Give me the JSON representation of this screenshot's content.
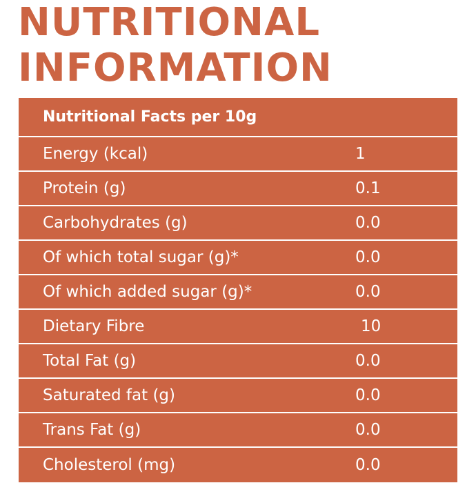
{
  "title": {
    "line1": "NUTRITIONAL",
    "line2": "INFORMATION"
  },
  "table": {
    "header": "Nutritional Facts per 10g",
    "rows": [
      {
        "label": "Energy (kcal)",
        "value": "1"
      },
      {
        "label": "Protein (g)",
        "value": "0.1"
      },
      {
        "label": "Carbohydrates (g)",
        "value": "0.0"
      },
      {
        "label": "Of which total sugar (g)*",
        "value": "0.0"
      },
      {
        "label": "Of which added sugar (g)*",
        "value": "0.0"
      },
      {
        "label": "Dietary Fibre",
        "value": "10"
      },
      {
        "label": "Total Fat (g)",
        "value": "0.0"
      },
      {
        "label": "Saturated fat (g)",
        "value": "0.0"
      },
      {
        "label": "Trans Fat (g)",
        "value": "0.0"
      },
      {
        "label": "Cholesterol (mg)",
        "value": "0.0"
      }
    ]
  },
  "colors": {
    "accent": "#cc6443",
    "text_on_accent": "#ffffff"
  }
}
